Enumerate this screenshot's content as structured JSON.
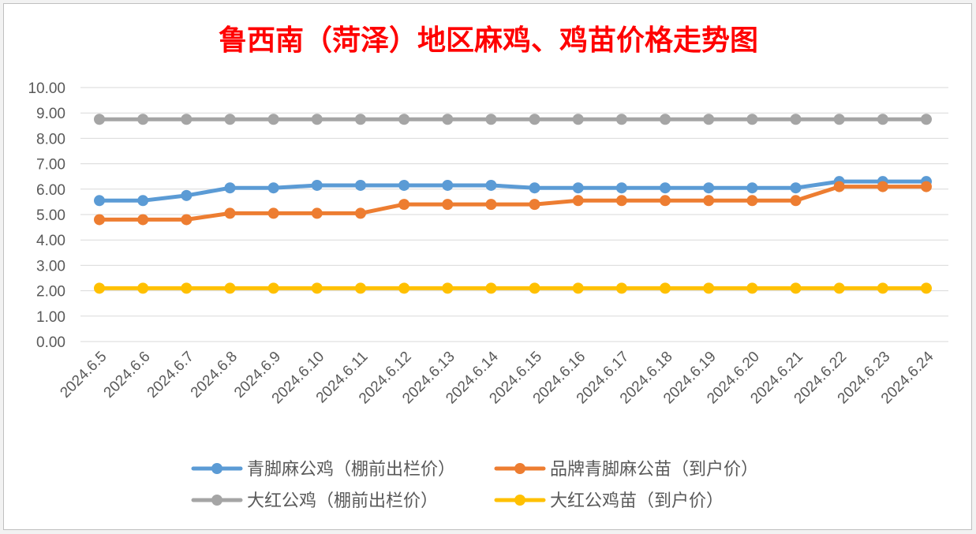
{
  "chart_data": {
    "type": "line",
    "title": "鲁西南（菏泽）地区麻鸡、鸡苗价格走势图",
    "xlabel": "",
    "ylabel": "",
    "ylim": [
      0,
      10
    ],
    "ytick_step": 1,
    "ytick_labels": [
      "0.00",
      "1.00",
      "2.00",
      "3.00",
      "4.00",
      "5.00",
      "6.00",
      "7.00",
      "8.00",
      "9.00",
      "10.00"
    ],
    "grid": true,
    "legend_position": "bottom",
    "categories": [
      "2024.6.5",
      "2024.6.6",
      "2024.6.7",
      "2024.6.8",
      "2024.6.9",
      "2024.6.10",
      "2024.6.11",
      "2024.6.12",
      "2024.6.13",
      "2024.6.14",
      "2024.6.15",
      "2024.6.16",
      "2024.6.17",
      "2024.6.18",
      "2024.6.19",
      "2024.6.20",
      "2024.6.21",
      "2024.6.22",
      "2024.6.23",
      "2024.6.24"
    ],
    "series": [
      {
        "name": "青脚麻公鸡（棚前出栏价）",
        "color": "#5b9bd5",
        "values": [
          5.55,
          5.55,
          5.75,
          6.05,
          6.05,
          6.15,
          6.15,
          6.15,
          6.15,
          6.15,
          6.05,
          6.05,
          6.05,
          6.05,
          6.05,
          6.05,
          6.05,
          6.3,
          6.3,
          6.3
        ]
      },
      {
        "name": "品牌青脚麻公苗（到户价）",
        "color": "#ed7d31",
        "values": [
          4.8,
          4.8,
          4.8,
          5.05,
          5.05,
          5.05,
          5.05,
          5.4,
          5.4,
          5.4,
          5.4,
          5.55,
          5.55,
          5.55,
          5.55,
          5.55,
          5.55,
          6.1,
          6.1,
          6.1
        ]
      },
      {
        "name": "大红公鸡（棚前出栏价）",
        "color": "#a5a5a5",
        "values": [
          8.75,
          8.75,
          8.75,
          8.75,
          8.75,
          8.75,
          8.75,
          8.75,
          8.75,
          8.75,
          8.75,
          8.75,
          8.75,
          8.75,
          8.75,
          8.75,
          8.75,
          8.75,
          8.75,
          8.75
        ]
      },
      {
        "name": "大红公鸡苗（到户价）",
        "color": "#ffc000",
        "values": [
          2.1,
          2.1,
          2.1,
          2.1,
          2.1,
          2.1,
          2.1,
          2.1,
          2.1,
          2.1,
          2.1,
          2.1,
          2.1,
          2.1,
          2.1,
          2.1,
          2.1,
          2.1,
          2.1,
          2.1
        ]
      }
    ],
    "title_color": "#ff0000",
    "gridline_color": "#d9d9d9",
    "text_color": "#595959"
  }
}
